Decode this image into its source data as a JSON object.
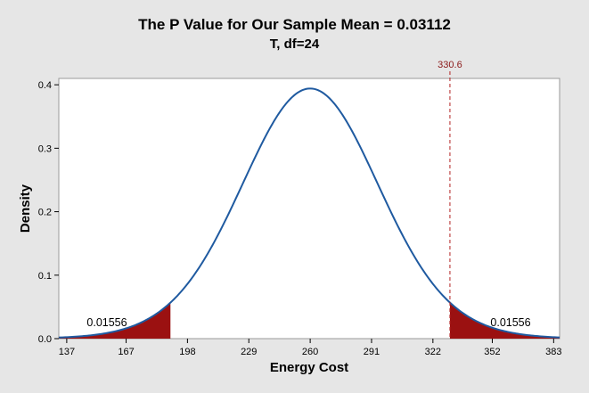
{
  "chart_data": {
    "type": "area",
    "title": "The P Value for Our Sample Mean = 0.03112",
    "subtitle": "T, df=24",
    "xlabel": "Energy Cost",
    "ylabel": "Density",
    "distribution": {
      "name": "T",
      "df": 24,
      "center": 260,
      "scale": 35.2
    },
    "xlim": [
      133,
      386
    ],
    "ylim": [
      0,
      0.41
    ],
    "x_ticks": [
      137,
      167,
      198,
      229,
      260,
      291,
      322,
      352,
      383
    ],
    "y_ticks": [
      0.0,
      0.1,
      0.2,
      0.3,
      0.4
    ],
    "y_tick_labels": [
      "0.0",
      "0.1",
      "0.2",
      "0.3",
      "0.4"
    ],
    "shaded_regions": [
      {
        "from": 133,
        "to": 189.4,
        "area": "0.01556",
        "color": "#9b1111"
      },
      {
        "from": 330.6,
        "to": 386,
        "area": "0.01556",
        "color": "#9b1111"
      }
    ],
    "reference_line": {
      "x": 330.6,
      "label": "330.6",
      "color": "#b22222"
    },
    "curve_color": "#1f5aa0",
    "grid": false
  }
}
